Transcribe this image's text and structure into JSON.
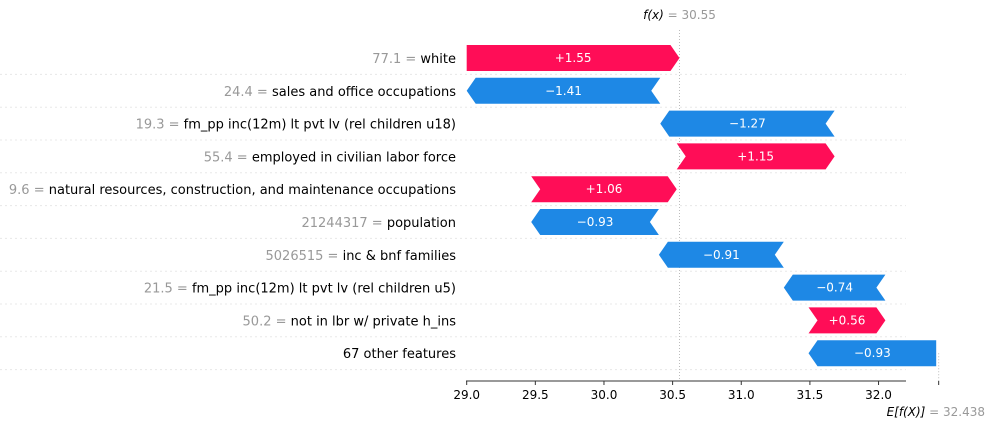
{
  "chart_data": {
    "type": "waterfall",
    "fx_label": "f(x)",
    "fx_value": "30.55",
    "fx_value_num": 30.55,
    "ex_label": "E[f(X)]",
    "ex_value": "32.438",
    "ex_value_num": 32.438,
    "xlim": [
      28.995,
      32.2
    ],
    "xticks": [
      "29.0",
      "29.5",
      "30.0",
      "30.5",
      "31.0",
      "31.5",
      "32.0"
    ],
    "rows": [
      {
        "value_label": "77.1",
        "feature": "white",
        "contribution": 1.55,
        "text": "+1.55"
      },
      {
        "value_label": "24.4",
        "feature": "sales and office occupations",
        "contribution": -1.41,
        "text": "−1.41"
      },
      {
        "value_label": "19.3",
        "feature": "fm_pp inc(12m) lt pvt lv (rel children u18)",
        "contribution": -1.27,
        "text": "−1.27"
      },
      {
        "value_label": "55.4",
        "feature": "employed in civilian labor force",
        "contribution": 1.15,
        "text": "+1.15"
      },
      {
        "value_label": "9.6",
        "feature": "natural resources, construction, and maintenance occupations",
        "contribution": 1.06,
        "text": "+1.06"
      },
      {
        "value_label": "21244317",
        "feature": "population",
        "contribution": -0.93,
        "text": "−0.93"
      },
      {
        "value_label": "5026515",
        "feature": "inc & bnf families",
        "contribution": -0.91,
        "text": "−0.91"
      },
      {
        "value_label": "21.5",
        "feature": "fm_pp inc(12m) lt pvt lv (rel children u5)",
        "contribution": -0.74,
        "text": "−0.74"
      },
      {
        "value_label": "50.2",
        "feature": "not in lbr w/ private h_ins",
        "contribution": 0.56,
        "text": "+0.56"
      },
      {
        "value_label": "",
        "feature": "67 other features",
        "contribution": -0.93,
        "text": "−0.93"
      }
    ],
    "colors": {
      "positive": "#ff0d57",
      "negative": "#1e88e5"
    }
  }
}
